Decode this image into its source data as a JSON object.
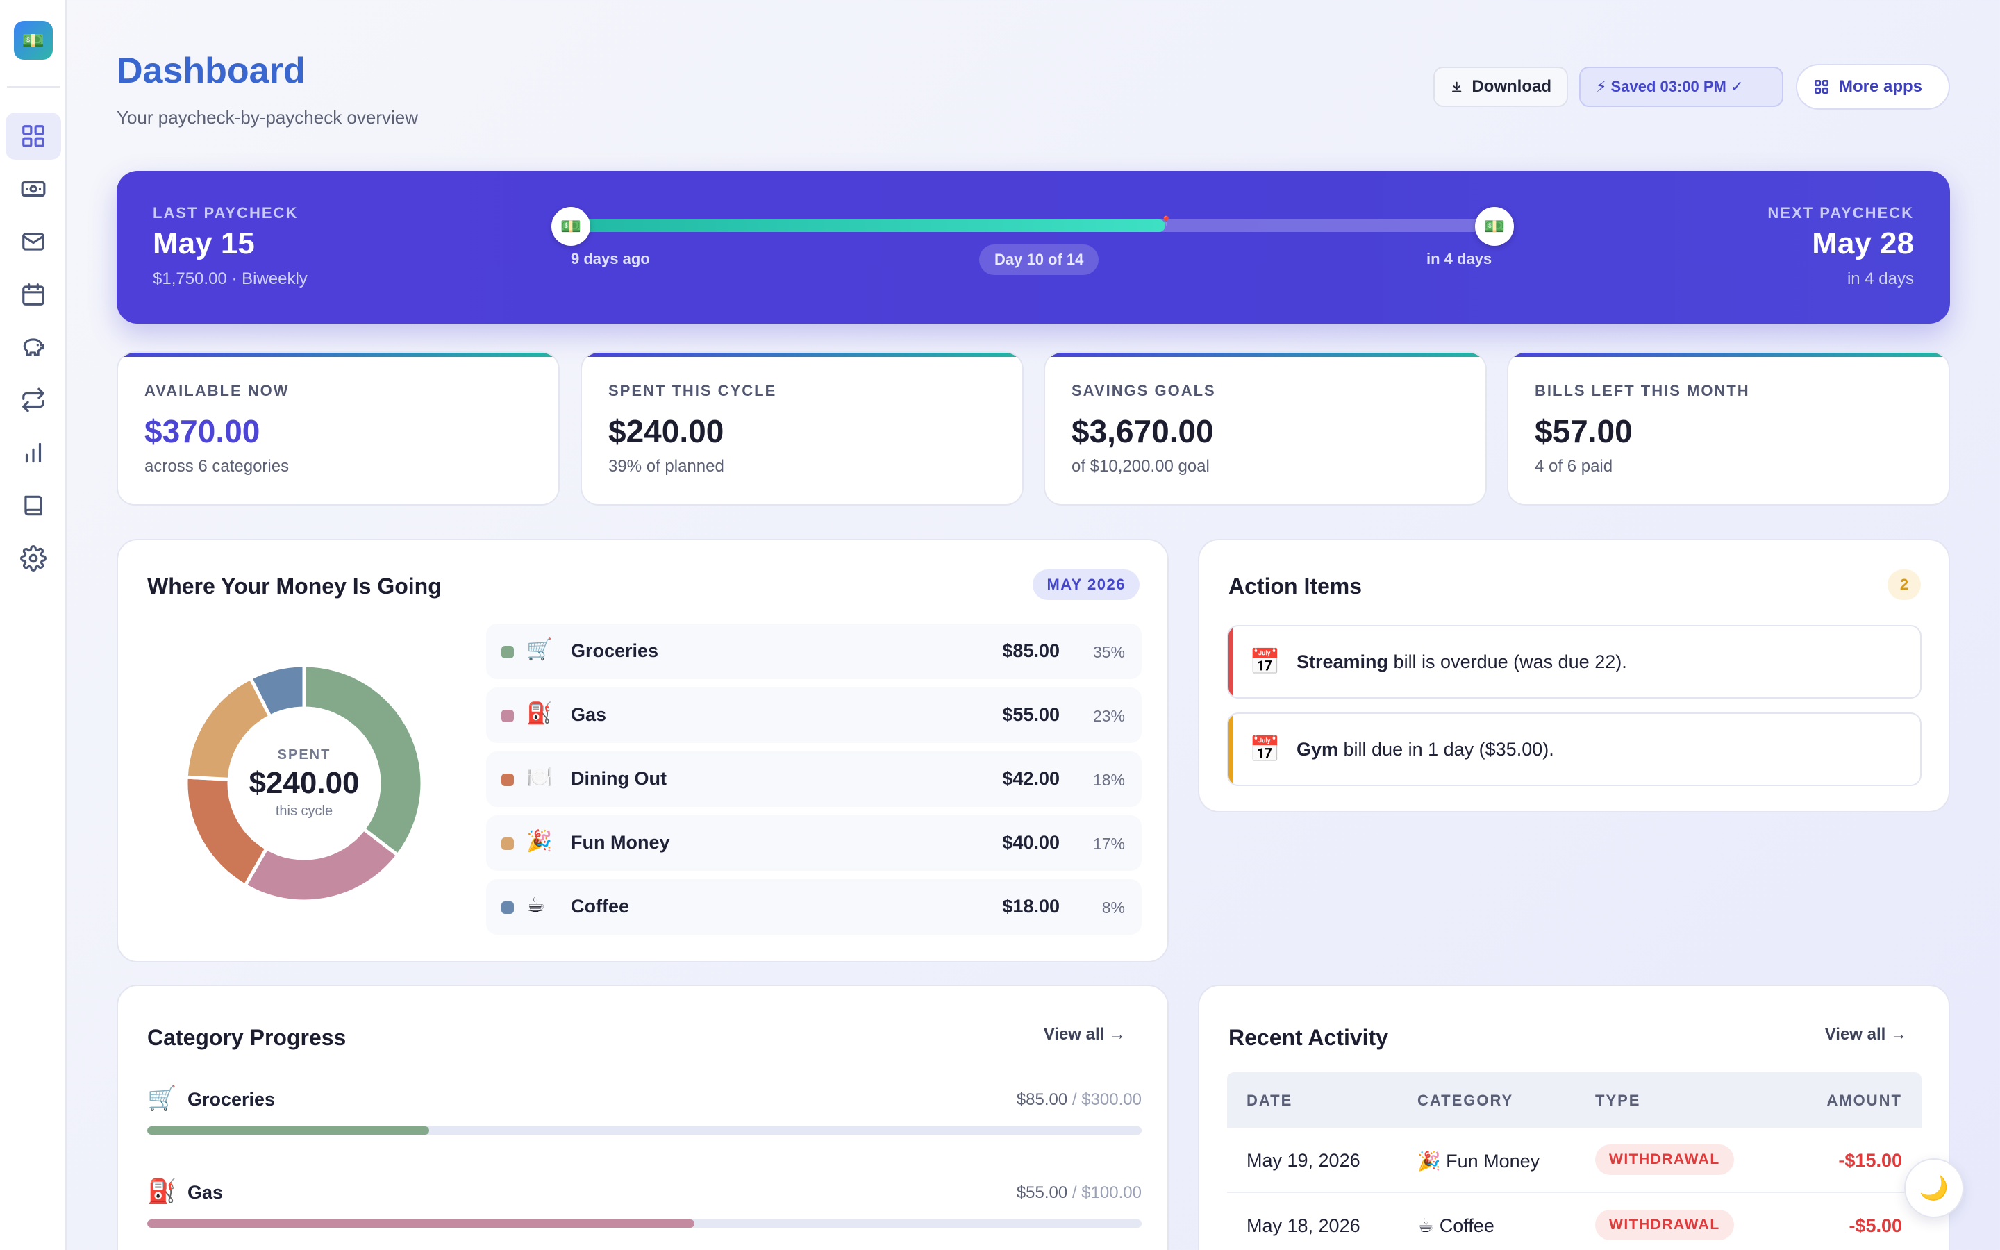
{
  "app": {
    "logo_icon": "💵"
  },
  "sidebar": {
    "items": [
      {
        "name": "dashboard",
        "icon": "grid-icon",
        "active": true
      },
      {
        "name": "paychecks",
        "icon": "money-icon"
      },
      {
        "name": "envelopes",
        "icon": "mail-icon"
      },
      {
        "name": "calendar",
        "icon": "calendar-icon"
      },
      {
        "name": "savings",
        "icon": "piggy-bank-icon"
      },
      {
        "name": "transactions",
        "icon": "repeat-icon"
      },
      {
        "name": "reports",
        "icon": "bar-chart-icon"
      },
      {
        "name": "guide",
        "icon": "book-icon"
      },
      {
        "name": "settings",
        "icon": "gear-icon"
      }
    ]
  },
  "header": {
    "title": "Dashboard",
    "subtitle": "Your paycheck-by-paycheck overview",
    "download_label": "Download",
    "saved_label": "⚡ Saved 03:00 PM ✓",
    "more_apps_label": "More apps"
  },
  "paycheck": {
    "last_label": "LAST PAYCHECK",
    "last_date": "May 15",
    "last_sub": "$1,750.00 · Biweekly",
    "next_label": "NEXT PAYCHECK",
    "next_date": "May 28",
    "next_sub": "in 4 days",
    "ago_label": "9 days ago",
    "until_label": "in 4 days",
    "day_label": "Day 10 of 14",
    "progress_fraction": 0.64,
    "knob_icon": "💵",
    "pin_icon": "📍"
  },
  "stats": [
    {
      "label": "AVAILABLE NOW",
      "value": "$370.00",
      "sub": "across 6 categories"
    },
    {
      "label": "SPENT THIS CYCLE",
      "value": "$240.00",
      "sub": "39% of planned"
    },
    {
      "label": "SAVINGS GOALS",
      "value": "$3,670.00",
      "sub": "of $10,200.00 goal"
    },
    {
      "label": "BILLS LEFT THIS MONTH",
      "value": "$57.00",
      "sub": "4 of 6 paid"
    }
  ],
  "money_going": {
    "title": "Where Your Money Is Going",
    "month_badge": "MAY 2026",
    "center_label": "SPENT",
    "center_value": "$240.00",
    "center_sub": "this cycle"
  },
  "chart_data": {
    "type": "pie",
    "categories": [
      "Groceries",
      "Gas",
      "Dining Out",
      "Fun Money",
      "Coffee"
    ],
    "values": [
      85.0,
      55.0,
      42.0,
      40.0,
      18.0
    ],
    "percents": [
      "35%",
      "23%",
      "18%",
      "17%",
      "8%"
    ],
    "amounts": [
      "$85.00",
      "$55.00",
      "$42.00",
      "$40.00",
      "$18.00"
    ],
    "icons": [
      "🛒",
      "⛽",
      "🍽️",
      "🎉",
      "☕"
    ],
    "colors": [
      "#84a98a",
      "#c48aa0",
      "#cc7755",
      "#d8a56e",
      "#6888ad"
    ]
  },
  "action_items": {
    "title": "Action Items",
    "count": "2",
    "items": [
      {
        "icon": "📅",
        "bold": "Streaming",
        "text": " bill is overdue (was due 22)."
      },
      {
        "icon": "📅",
        "bold": "Gym",
        "text": " bill due in 1 day ($35.00)."
      }
    ]
  },
  "category_progress": {
    "title": "Category Progress",
    "view_all": "View all →",
    "items": [
      {
        "icon": "🛒",
        "name": "Groceries",
        "spent": "$85.00",
        "total": " / $300.00",
        "fraction": 0.2833,
        "color": "#84a98a"
      },
      {
        "icon": "⛽",
        "name": "Gas",
        "spent": "$55.00",
        "total": " / $100.00",
        "fraction": 0.55,
        "color": "#c48aa0"
      }
    ]
  },
  "recent_activity": {
    "title": "Recent Activity",
    "view_all": "View all →",
    "columns": [
      "DATE",
      "CATEGORY",
      "TYPE",
      "AMOUNT"
    ],
    "rows": [
      {
        "date": "May 19, 2026",
        "category": "🎉 Fun Money",
        "type": "WITHDRAWAL",
        "amount": "-$15.00"
      },
      {
        "date": "May 18, 2026",
        "category": "☕ Coffee",
        "type": "WITHDRAWAL",
        "amount": "-$5.00"
      }
    ]
  },
  "theme_toggle_icon": "🌙"
}
